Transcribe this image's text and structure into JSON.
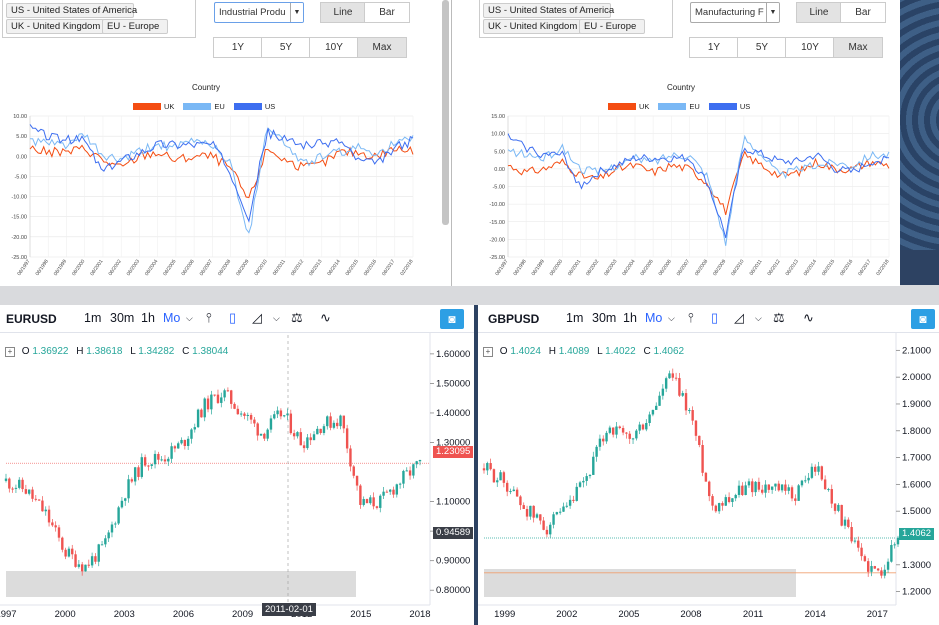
{
  "econ_left": {
    "countries": [
      "US - United States of America",
      "UK - United Kingdom",
      "EU - Europe"
    ],
    "indicator": "Industrial Produ",
    "chart_type_buttons": [
      "Line",
      "Bar"
    ],
    "active_chart_type": "Line",
    "range_buttons": [
      "1Y",
      "5Y",
      "10Y",
      "Max"
    ],
    "active_range": "Max",
    "chart_title": "Country",
    "y_ticks": [
      "10.00",
      "5.00",
      "0.00",
      "-5.00",
      "-10.00",
      "-15.00",
      "-20.00",
      "-25.00"
    ]
  },
  "econ_right": {
    "countries": [
      "US - United States of America",
      "UK - United Kingdom",
      "EU - Europe"
    ],
    "indicator": "Manufacturing F",
    "chart_type_buttons": [
      "Line",
      "Bar"
    ],
    "active_chart_type": "Line",
    "range_buttons": [
      "1Y",
      "5Y",
      "10Y",
      "Max"
    ],
    "active_range": "Max",
    "chart_title": "Country",
    "y_ticks": [
      "15.00",
      "10.00",
      "5.00",
      "0.00",
      "-5.00",
      "-10.00",
      "-15.00",
      "-20.00",
      "-25.00"
    ]
  },
  "x_date_labels": [
    "06/1997",
    "06/1998",
    "06/1999",
    "06/2000",
    "06/2001",
    "06/2002",
    "06/2003",
    "06/2004",
    "06/2005",
    "06/2006",
    "06/2007",
    "06/2008",
    "06/2009",
    "06/2010",
    "06/2011",
    "06/2012",
    "06/2013",
    "06/2014",
    "06/2015",
    "06/2016",
    "06/2017",
    "02/2018"
  ],
  "legend": [
    {
      "name": "UK",
      "color": "#f44d12"
    },
    {
      "name": "EU",
      "color": "#7ab8f5"
    },
    {
      "name": "US",
      "color": "#3d6ef0"
    }
  ],
  "fx_timeframes": [
    "1m",
    "30m",
    "1h",
    "Mo"
  ],
  "fx_selected_timeframe": "Mo",
  "fx_left": {
    "symbol": "EURUSD",
    "ohlc": [
      {
        "k": "O",
        "v": "1.36922"
      },
      {
        "k": "H",
        "v": "1.38618"
      },
      {
        "k": "L",
        "v": "1.34282"
      },
      {
        "k": "C",
        "v": "1.38044"
      }
    ],
    "price_axis": [
      "1.60000",
      "1.50000",
      "1.40000",
      "1.30000",
      "1.10000",
      "1.00000",
      "0.90000",
      "0.80000"
    ],
    "last_price": "1.23095",
    "crosshair_price": "0.94589",
    "crosshair_date": "2011-02-01",
    "years": [
      "1997",
      "2000",
      "2003",
      "2006",
      "2009",
      "2012",
      "2015",
      "2018"
    ]
  },
  "fx_right": {
    "symbol": "GBPUSD",
    "ohlc": [
      {
        "k": "O",
        "v": "1.4024"
      },
      {
        "k": "H",
        "v": "1.4089"
      },
      {
        "k": "L",
        "v": "1.4022"
      },
      {
        "k": "C",
        "v": "1.4062"
      }
    ],
    "price_axis": [
      "2.1000",
      "2.0000",
      "1.9000",
      "1.8000",
      "1.7000",
      "1.6000",
      "1.5000",
      "1.3000",
      "1.2000"
    ],
    "last_price": "1.4062",
    "years": [
      "1999",
      "2002",
      "2005",
      "2008",
      "2011",
      "2014",
      "2017"
    ]
  },
  "chart_data": [
    {
      "type": "line",
      "title": "Country",
      "x": [
        "1997",
        "1998",
        "1999",
        "2000",
        "2001",
        "2002",
        "2003",
        "2004",
        "2005",
        "2006",
        "2007",
        "2008",
        "2009",
        "2010",
        "2011",
        "2012",
        "2013",
        "2014",
        "2015",
        "2016",
        "2017",
        "2018"
      ],
      "series": [
        {
          "name": "UK",
          "values": [
            2,
            1,
            1,
            2,
            -1,
            -3,
            0,
            1,
            -1,
            0,
            0,
            -3,
            -11,
            2,
            -1,
            -3,
            -2,
            1,
            1,
            0,
            2,
            1
          ]
        },
        {
          "name": "EU",
          "values": [
            4,
            3,
            3,
            5,
            0,
            -1,
            1,
            3,
            2,
            4,
            3,
            -2,
            -20,
            8,
            3,
            -2,
            0,
            1,
            2,
            1,
            3,
            4
          ]
        },
        {
          "name": "US",
          "values": [
            7,
            5,
            4,
            4,
            -4,
            -1,
            1,
            3,
            3,
            3,
            3,
            -4,
            -15,
            6,
            4,
            3,
            3,
            4,
            -1,
            -2,
            2,
            4
          ]
        }
      ],
      "ylim": [
        -25,
        10
      ]
    },
    {
      "type": "line",
      "title": "Country",
      "x": [
        "1997",
        "1998",
        "1999",
        "2000",
        "2001",
        "2002",
        "2003",
        "2004",
        "2005",
        "2006",
        "2007",
        "2008",
        "2009",
        "2010",
        "2011",
        "2012",
        "2013",
        "2014",
        "2015",
        "2016",
        "2017",
        "2018"
      ],
      "series": [
        {
          "name": "UK",
          "values": [
            1,
            -1,
            0,
            2,
            -2,
            -3,
            0,
            1,
            -1,
            1,
            0,
            -4,
            -12,
            4,
            1,
            -2,
            -1,
            2,
            0,
            0,
            2,
            1
          ]
        },
        {
          "name": "EU",
          "values": [
            5,
            4,
            3,
            6,
            0,
            -1,
            1,
            3,
            2,
            4,
            4,
            -2,
            -21,
            9,
            4,
            -2,
            0,
            1,
            2,
            1,
            4,
            4
          ]
        },
        {
          "name": "US",
          "values": [
            9,
            6,
            4,
            4,
            -5,
            -1,
            1,
            3,
            3,
            3,
            3,
            -4,
            -19,
            6,
            4,
            2,
            2,
            4,
            0,
            -1,
            2,
            3
          ]
        }
      ],
      "ylim": [
        -25,
        15
      ]
    },
    {
      "type": "candlestick",
      "title": "EURUSD",
      "x": [
        "1997",
        "1998",
        "1999",
        "2000",
        "2001",
        "2002",
        "2003",
        "2004",
        "2005",
        "2006",
        "2007",
        "2008",
        "2009",
        "2010",
        "2011",
        "2012",
        "2013",
        "2014",
        "2015",
        "2016",
        "2017",
        "2018"
      ],
      "values": [
        1.17,
        1.14,
        1.06,
        0.93,
        0.88,
        0.95,
        1.13,
        1.24,
        1.25,
        1.3,
        1.42,
        1.47,
        1.4,
        1.33,
        1.4,
        1.3,
        1.36,
        1.38,
        1.09,
        1.1,
        1.17,
        1.23
      ],
      "ylim": [
        0.75,
        1.63
      ]
    },
    {
      "type": "candlestick",
      "title": "GBPUSD",
      "x": [
        "1998",
        "1999",
        "2000",
        "2001",
        "2002",
        "2003",
        "2004",
        "2005",
        "2006",
        "2007",
        "2008",
        "2009",
        "2010",
        "2011",
        "2012",
        "2013",
        "2014",
        "2015",
        "2016",
        "2017",
        "2018"
      ],
      "values": [
        1.66,
        1.61,
        1.51,
        1.44,
        1.5,
        1.63,
        1.82,
        1.76,
        1.85,
        2.01,
        1.86,
        1.52,
        1.56,
        1.6,
        1.58,
        1.56,
        1.67,
        1.52,
        1.35,
        1.26,
        1.4
      ],
      "ylim": [
        1.15,
        2.12
      ]
    }
  ]
}
